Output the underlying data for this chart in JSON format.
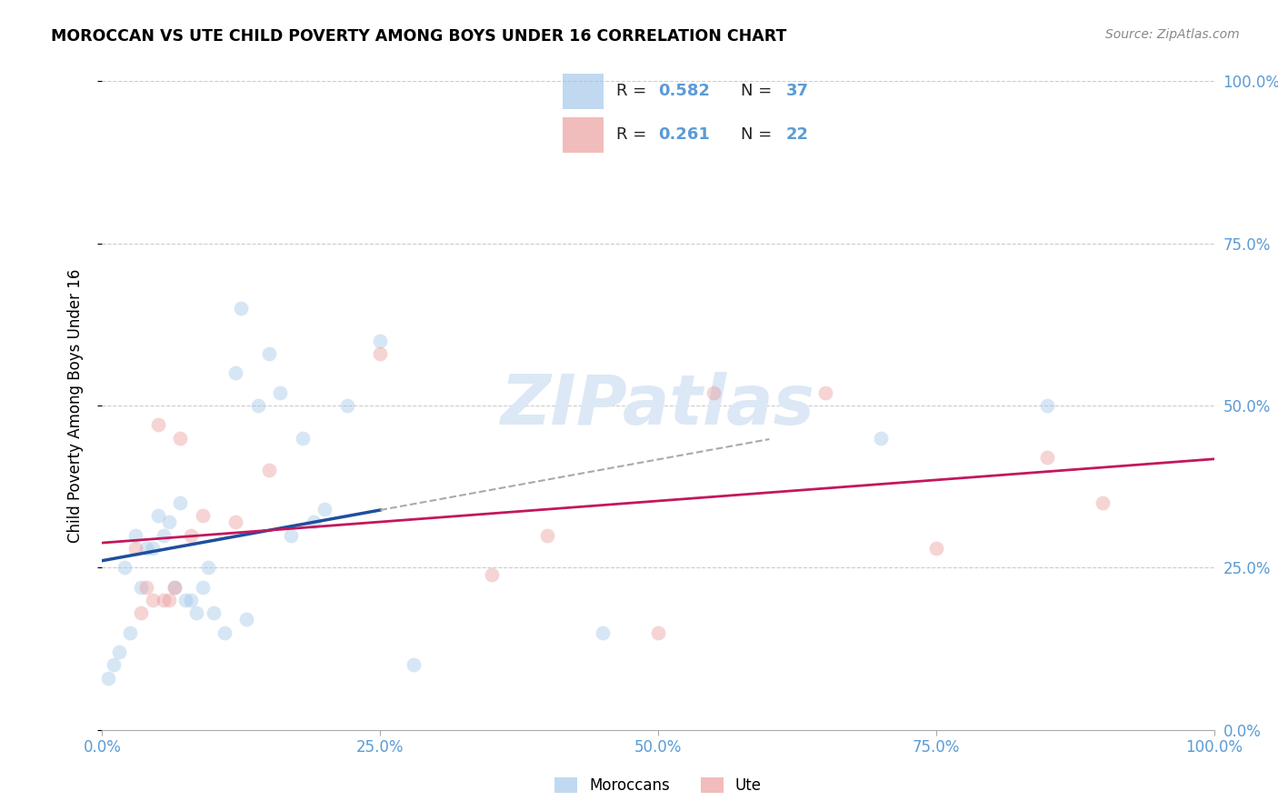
{
  "title": "MOROCCAN VS UTE CHILD POVERTY AMONG BOYS UNDER 16 CORRELATION CHART",
  "source": "Source: ZipAtlas.com",
  "ylabel": "Child Poverty Among Boys Under 16",
  "blue_label": "Moroccans",
  "pink_label": "Ute",
  "blue_R": "0.582",
  "blue_N": "37",
  "pink_R": "0.261",
  "pink_N": "22",
  "blue_color": "#9fc5e8",
  "pink_color": "#ea9999",
  "blue_line_color": "#1f4e9e",
  "pink_line_color": "#c2185b",
  "watermark_color": "#dce8f5",
  "grid_color": "#cccccc",
  "tick_label_color": "#5b9bd5",
  "background_color": "#ffffff",
  "xticklabels": [
    "0.0%",
    "25.0%",
    "50.0%",
    "75.0%",
    "100.0%"
  ],
  "yticklabels": [
    "0.0%",
    "25.0%",
    "50.0%",
    "75.0%",
    "100.0%"
  ],
  "blue_x": [
    0.5,
    1.2,
    1.5,
    1.8,
    2.0,
    0.3,
    0.4,
    0.6,
    0.7,
    0.8,
    0.9,
    1.0,
    1.1,
    1.3,
    1.4,
    1.6,
    0.2,
    0.35,
    0.45,
    0.55,
    0.65,
    0.75,
    0.85,
    0.95,
    7.0,
    8.5,
    2.8,
    0.25,
    0.15,
    0.1,
    0.05,
    1.25,
    2.2,
    2.5,
    4.5,
    1.7,
    1.9
  ],
  "blue_y": [
    33.0,
    55.0,
    58.0,
    45.0,
    34.0,
    30.0,
    28.0,
    32.0,
    35.0,
    20.0,
    22.0,
    18.0,
    15.0,
    17.0,
    50.0,
    52.0,
    25.0,
    22.0,
    28.0,
    30.0,
    22.0,
    20.0,
    18.0,
    25.0,
    45.0,
    50.0,
    10.0,
    15.0,
    12.0,
    10.0,
    8.0,
    65.0,
    50.0,
    60.0,
    15.0,
    30.0,
    32.0
  ],
  "pink_x": [
    0.3,
    0.5,
    0.7,
    0.8,
    0.9,
    1.5,
    2.5,
    6.5,
    7.5,
    8.5,
    5.0,
    0.4,
    0.6,
    1.2,
    0.35,
    0.45,
    0.55,
    0.65,
    4.0,
    9.0,
    3.5,
    5.5
  ],
  "pink_y": [
    28.0,
    47.0,
    45.0,
    30.0,
    33.0,
    40.0,
    58.0,
    52.0,
    28.0,
    42.0,
    15.0,
    22.0,
    20.0,
    32.0,
    18.0,
    20.0,
    20.0,
    22.0,
    30.0,
    35.0,
    24.0,
    52.0
  ],
  "marker_size": 130,
  "marker_alpha": 0.42
}
